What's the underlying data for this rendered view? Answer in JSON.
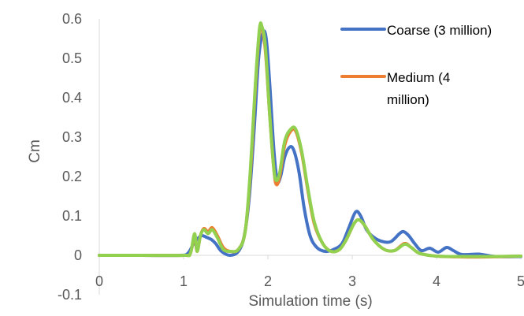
{
  "chart_data": {
    "type": "line",
    "title": "",
    "xlabel": "Simulation time (s)",
    "ylabel": "Cm",
    "xlim": [
      0,
      5
    ],
    "ylim": [
      -0.1,
      0.6
    ],
    "x_ticks": [
      0,
      1,
      2,
      3,
      4,
      5
    ],
    "y_ticks": [
      -0.1,
      0,
      0.1,
      0.2,
      0.3,
      0.4,
      0.5,
      0.6
    ],
    "x_tick_labels": [
      "0",
      "1",
      "2",
      "3",
      "4",
      "5"
    ],
    "y_tick_labels": [
      "-0.1",
      "0",
      "0.1",
      "0.2",
      "0.3",
      "0.4",
      "0.5",
      "0.6"
    ],
    "grid": false,
    "legend_position": "top-right",
    "series": [
      {
        "name": "Coarse (3 million)",
        "color": "#4472C4",
        "points": [
          [
            0,
            0
          ],
          [
            0.5,
            0
          ],
          [
            0.95,
            0
          ],
          [
            1.05,
            0.005
          ],
          [
            1.12,
            0.03
          ],
          [
            1.18,
            0.045
          ],
          [
            1.22,
            0.05
          ],
          [
            1.28,
            0.045
          ],
          [
            1.33,
            0.04
          ],
          [
            1.38,
            0.03
          ],
          [
            1.45,
            0.01
          ],
          [
            1.55,
            0
          ],
          [
            1.65,
            0.01
          ],
          [
            1.72,
            0.05
          ],
          [
            1.78,
            0.15
          ],
          [
            1.84,
            0.33
          ],
          [
            1.89,
            0.5
          ],
          [
            1.94,
            0.565
          ],
          [
            1.98,
            0.55
          ],
          [
            2.02,
            0.44
          ],
          [
            2.07,
            0.27
          ],
          [
            2.11,
            0.19
          ],
          [
            2.15,
            0.2
          ],
          [
            2.2,
            0.25
          ],
          [
            2.26,
            0.275
          ],
          [
            2.31,
            0.265
          ],
          [
            2.37,
            0.21
          ],
          [
            2.43,
            0.12
          ],
          [
            2.5,
            0.05
          ],
          [
            2.58,
            0.02
          ],
          [
            2.68,
            0.01
          ],
          [
            2.78,
            0.015
          ],
          [
            2.88,
            0.03
          ],
          [
            2.96,
            0.07
          ],
          [
            3.04,
            0.11
          ],
          [
            3.1,
            0.1
          ],
          [
            3.17,
            0.065
          ],
          [
            3.26,
            0.045
          ],
          [
            3.36,
            0.035
          ],
          [
            3.46,
            0.035
          ],
          [
            3.56,
            0.055
          ],
          [
            3.61,
            0.06
          ],
          [
            3.67,
            0.05
          ],
          [
            3.74,
            0.03
          ],
          [
            3.82,
            0.012
          ],
          [
            3.92,
            0.018
          ],
          [
            4.02,
            0.008
          ],
          [
            4.12,
            0.02
          ],
          [
            4.2,
            0.012
          ],
          [
            4.3,
            0.002
          ],
          [
            4.5,
            0.003
          ],
          [
            4.7,
            -0.003
          ],
          [
            5,
            -0.003
          ]
        ]
      },
      {
        "name": "Medium (4 million)",
        "color": "#ED7D31",
        "points": [
          [
            0,
            0
          ],
          [
            0.5,
            0
          ],
          [
            1.0,
            0
          ],
          [
            1.08,
            0.005
          ],
          [
            1.13,
            0.05
          ],
          [
            1.16,
            0.01
          ],
          [
            1.2,
            0.05
          ],
          [
            1.24,
            0.068
          ],
          [
            1.29,
            0.06
          ],
          [
            1.34,
            0.07
          ],
          [
            1.4,
            0.05
          ],
          [
            1.47,
            0.02
          ],
          [
            1.55,
            0.01
          ],
          [
            1.65,
            0.015
          ],
          [
            1.73,
            0.06
          ],
          [
            1.79,
            0.2
          ],
          [
            1.85,
            0.42
          ],
          [
            1.9,
            0.57
          ],
          [
            1.93,
            0.575
          ],
          [
            1.97,
            0.52
          ],
          [
            2.02,
            0.36
          ],
          [
            2.07,
            0.22
          ],
          [
            2.1,
            0.18
          ],
          [
            2.14,
            0.2
          ],
          [
            2.2,
            0.28
          ],
          [
            2.27,
            0.315
          ],
          [
            2.33,
            0.315
          ],
          [
            2.4,
            0.26
          ],
          [
            2.47,
            0.17
          ],
          [
            2.55,
            0.08
          ],
          [
            2.65,
            0.03
          ],
          [
            2.75,
            0.01
          ],
          [
            2.85,
            0.015
          ],
          [
            2.93,
            0.04
          ],
          [
            3.02,
            0.08
          ],
          [
            3.08,
            0.09
          ],
          [
            3.15,
            0.075
          ],
          [
            3.25,
            0.04
          ],
          [
            3.38,
            0.015
          ],
          [
            3.5,
            0.012
          ],
          [
            3.62,
            0.03
          ],
          [
            3.7,
            0.02
          ],
          [
            3.8,
            0.005
          ],
          [
            4.0,
            -0.002
          ],
          [
            4.3,
            -0.004
          ],
          [
            4.6,
            -0.004
          ],
          [
            5,
            -0.002
          ]
        ]
      },
      {
        "name": "",
        "color": "#92D050",
        "points": [
          [
            0,
            0
          ],
          [
            0.5,
            0
          ],
          [
            1.0,
            0
          ],
          [
            1.08,
            0.005
          ],
          [
            1.13,
            0.055
          ],
          [
            1.16,
            0.01
          ],
          [
            1.2,
            0.05
          ],
          [
            1.24,
            0.065
          ],
          [
            1.29,
            0.055
          ],
          [
            1.34,
            0.065
          ],
          [
            1.4,
            0.045
          ],
          [
            1.47,
            0.015
          ],
          [
            1.55,
            0.01
          ],
          [
            1.65,
            0.015
          ],
          [
            1.73,
            0.06
          ],
          [
            1.79,
            0.21
          ],
          [
            1.85,
            0.43
          ],
          [
            1.9,
            0.575
          ],
          [
            1.93,
            0.58
          ],
          [
            1.97,
            0.53
          ],
          [
            2.02,
            0.36
          ],
          [
            2.07,
            0.22
          ],
          [
            2.1,
            0.19
          ],
          [
            2.14,
            0.21
          ],
          [
            2.2,
            0.29
          ],
          [
            2.27,
            0.32
          ],
          [
            2.33,
            0.32
          ],
          [
            2.4,
            0.265
          ],
          [
            2.47,
            0.175
          ],
          [
            2.55,
            0.085
          ],
          [
            2.65,
            0.03
          ],
          [
            2.75,
            0.01
          ],
          [
            2.85,
            0.015
          ],
          [
            2.93,
            0.04
          ],
          [
            3.02,
            0.08
          ],
          [
            3.08,
            0.09
          ],
          [
            3.15,
            0.075
          ],
          [
            3.25,
            0.04
          ],
          [
            3.38,
            0.015
          ],
          [
            3.5,
            0.012
          ],
          [
            3.62,
            0.028
          ],
          [
            3.7,
            0.02
          ],
          [
            3.8,
            0.005
          ],
          [
            4.0,
            -0.002
          ],
          [
            4.3,
            -0.003
          ],
          [
            4.6,
            -0.003
          ],
          [
            5,
            -0.002
          ]
        ]
      }
    ]
  }
}
